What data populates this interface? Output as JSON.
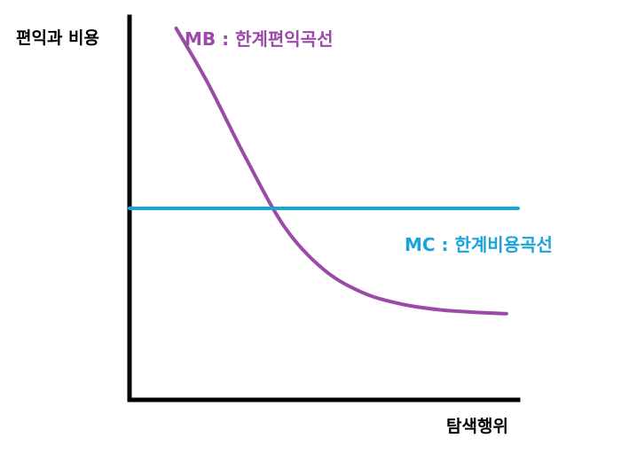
{
  "chart_data": {
    "type": "line",
    "title": "",
    "ylabel": "편익과 비용",
    "xlabel": "탐색행위",
    "xlim": [
      0,
      100
    ],
    "ylim": [
      0,
      100
    ],
    "grid": false,
    "series": [
      {
        "name": "MB : 한계편익곡선",
        "color": "#9b4aa8",
        "x": [
          12,
          20,
          30,
          40,
          50,
          60,
          70,
          80,
          90,
          97
        ],
        "y": [
          97,
          83,
          63,
          45,
          34,
          28,
          25,
          23.5,
          22.8,
          22.5
        ]
      },
      {
        "name": "MC : 한계비용곡선",
        "color": "#1aa4dc",
        "x": [
          0,
          100
        ],
        "y": [
          50,
          50
        ]
      }
    ]
  }
}
